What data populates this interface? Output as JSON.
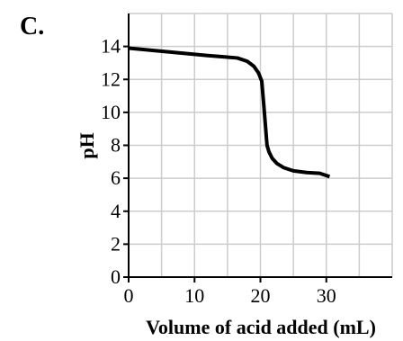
{
  "panel_label": "C.",
  "chart_data": {
    "type": "line",
    "title": "",
    "xlabel": "Volume of acid added (mL)",
    "ylabel": "pH",
    "xlim": [
      0,
      40
    ],
    "ylim": [
      0,
      16
    ],
    "x_ticks": [
      0,
      10,
      20,
      30
    ],
    "x_tick_labels": [
      "0",
      "10",
      "20",
      "30"
    ],
    "y_ticks": [
      0,
      2,
      4,
      6,
      8,
      10,
      12,
      14
    ],
    "y_tick_labels": [
      "0",
      "2",
      "4",
      "6",
      "8",
      "10",
      "12",
      "14"
    ],
    "grid": true,
    "legend": "none",
    "colors": {
      "line": "#000000",
      "grid": "#cccccc",
      "axis": "#000000"
    },
    "series": [
      {
        "x": [
          0,
          4,
          8,
          12,
          15,
          16.5,
          18,
          19,
          19.7,
          20.2,
          20.5,
          20.8,
          21.0,
          21.3,
          21.8,
          22.5,
          23.5,
          25,
          27,
          29,
          30.5
        ],
        "y": [
          13.9,
          13.75,
          13.6,
          13.45,
          13.35,
          13.3,
          13.1,
          12.8,
          12.4,
          11.9,
          10.5,
          9.0,
          8.0,
          7.6,
          7.2,
          6.9,
          6.65,
          6.45,
          6.35,
          6.3,
          6.1
        ]
      }
    ]
  }
}
